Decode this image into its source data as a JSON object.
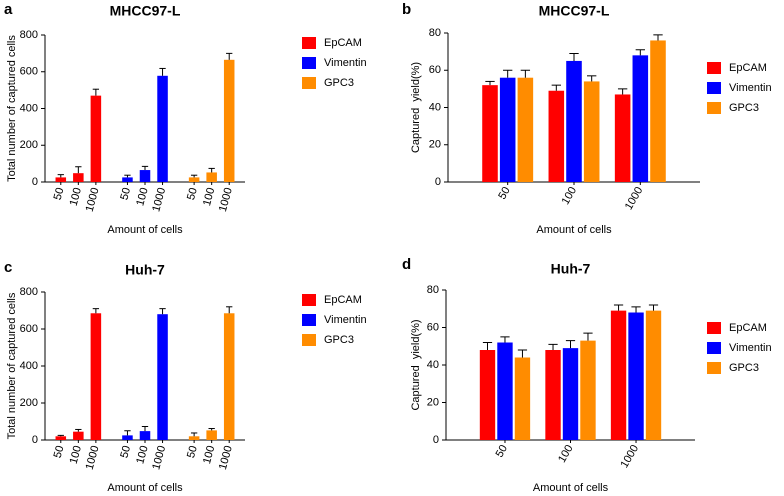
{
  "chart_data": [
    {
      "type": "bar",
      "panel": "a",
      "title": "MHCC97-L",
      "y_label": "Total number of captured cells",
      "x_label": "Amount of cells",
      "categories": [
        "50",
        "100",
        "1000",
        "50",
        "100",
        "1000",
        "50",
        "100",
        "1000"
      ],
      "ylim": [
        0,
        800
      ],
      "yticks": [
        0,
        200,
        400,
        600,
        800
      ],
      "series": [
        {
          "name": "EpCAM",
          "color": "#ff0000",
          "values": [
            25,
            48,
            470,
            null,
            null,
            null,
            null,
            null,
            null
          ],
          "errors": [
            15,
            35,
            35,
            null,
            null,
            null,
            null,
            null,
            null
          ]
        },
        {
          "name": "Vimentin",
          "color": "#0000ff",
          "values": [
            null,
            null,
            null,
            25,
            65,
            578,
            null,
            null,
            null
          ],
          "errors": [
            null,
            null,
            null,
            12,
            20,
            40,
            null,
            null,
            null
          ]
        },
        {
          "name": "GPC3",
          "color": "#ff8c00",
          "values": [
            null,
            null,
            null,
            null,
            null,
            null,
            25,
            52,
            665
          ],
          "errors": [
            null,
            null,
            null,
            null,
            null,
            null,
            12,
            22,
            35
          ]
        }
      ]
    },
    {
      "type": "bar",
      "panel": "b",
      "title": "MHCC97-L",
      "y_label": "Captured  yield(%)",
      "x_label": "Amount of cells",
      "categories": [
        "50",
        "100",
        "1000"
      ],
      "ylim": [
        0,
        80
      ],
      "yticks": [
        0,
        20,
        40,
        60,
        80
      ],
      "series": [
        {
          "name": "EpCAM",
          "color": "#ff0000",
          "values": [
            52,
            49,
            47
          ],
          "errors": [
            2,
            3,
            3
          ]
        },
        {
          "name": "Vimentin",
          "color": "#0000ff",
          "values": [
            56,
            65,
            68
          ],
          "errors": [
            4,
            4,
            3
          ]
        },
        {
          "name": "GPC3",
          "color": "#ff8c00",
          "values": [
            56,
            54,
            76
          ],
          "errors": [
            4,
            3,
            3
          ]
        }
      ]
    },
    {
      "type": "bar",
      "panel": "c",
      "title": "Huh-7",
      "y_label": "Total number of captured cells",
      "x_label": "Amount of cells",
      "categories": [
        "50",
        "100",
        "1000",
        "50",
        "100",
        "1000",
        "50",
        "100",
        "1000"
      ],
      "ylim": [
        0,
        800
      ],
      "yticks": [
        0,
        200,
        400,
        600,
        800
      ],
      "series": [
        {
          "name": "EpCAM",
          "color": "#ff0000",
          "values": [
            20,
            45,
            685,
            null,
            null,
            null,
            null,
            null,
            null
          ],
          "errors": [
            5,
            12,
            25,
            null,
            null,
            null,
            null,
            null,
            null
          ]
        },
        {
          "name": "Vimentin",
          "color": "#0000ff",
          "values": [
            null,
            null,
            null,
            25,
            48,
            680,
            null,
            null,
            null
          ],
          "errors": [
            null,
            null,
            null,
            25,
            25,
            30,
            null,
            null,
            null
          ]
        },
        {
          "name": "GPC3",
          "color": "#ff8c00",
          "values": [
            null,
            null,
            null,
            null,
            null,
            null,
            20,
            52,
            685
          ],
          "errors": [
            null,
            null,
            null,
            null,
            null,
            null,
            18,
            10,
            35
          ]
        }
      ]
    },
    {
      "type": "bar",
      "panel": "d",
      "title": "Huh-7",
      "y_label": "Captured  yield(%)",
      "x_label": "Amount of cells",
      "categories": [
        "50",
        "100",
        "1000"
      ],
      "ylim": [
        0,
        80
      ],
      "yticks": [
        0,
        20,
        40,
        60,
        80
      ],
      "series": [
        {
          "name": "EpCAM",
          "color": "#ff0000",
          "values": [
            48,
            48,
            69
          ],
          "errors": [
            4,
            3,
            3
          ]
        },
        {
          "name": "Vimentin",
          "color": "#0000ff",
          "values": [
            52,
            49,
            68
          ],
          "errors": [
            3,
            4,
            3
          ]
        },
        {
          "name": "GPC3",
          "color": "#ff8c00",
          "values": [
            44,
            53,
            69
          ],
          "errors": [
            4,
            4,
            3
          ]
        }
      ]
    }
  ]
}
